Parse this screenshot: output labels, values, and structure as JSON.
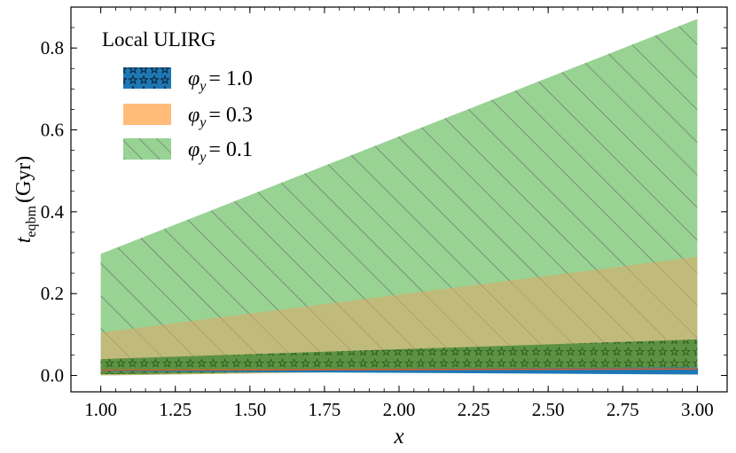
{
  "chart_data": {
    "type": "area",
    "annotation": "Local ULIRG",
    "xlabel": "x",
    "ylabel_main": "t",
    "ylabel_sub": "eqbm",
    "ylabel_unit": "(Gyr)",
    "xlim": [
      0.9,
      3.1
    ],
    "ylim": [
      -0.04,
      0.9
    ],
    "xticks": [
      "1.00",
      "1.25",
      "1.50",
      "1.75",
      "2.00",
      "2.25",
      "2.50",
      "2.75",
      "3.00"
    ],
    "yticks": [
      "0.0",
      "0.2",
      "0.4",
      "0.6",
      "0.8"
    ],
    "legend_position": "upper-left",
    "series": [
      {
        "name": "φy = 1.0",
        "legend_symbol": "φ",
        "legend_sub": "y",
        "legend_value": "= 1.0",
        "color": "#1f77b4",
        "hatch": "stars",
        "x": [
          1.0,
          3.0
        ],
        "lower": [
          0.012,
          0.004
        ],
        "upper": [
          0.012,
          0.018
        ]
      },
      {
        "name": "φy = 0.3",
        "legend_symbol": "φ",
        "legend_sub": "y",
        "legend_value": "= 0.3",
        "color": "#ffbb78",
        "hatch": "none",
        "x": [
          1.0,
          3.0
        ],
        "lower": [
          0.0,
          0.02
        ],
        "upper": [
          0.105,
          0.29
        ]
      },
      {
        "name": "φy = 0.1",
        "legend_symbol": "φ",
        "legend_sub": "y",
        "legend_value": "= 0.1",
        "color": "#98d394",
        "hatch": "diagonal",
        "x": [
          1.0,
          3.0
        ],
        "lower": [
          0.0,
          0.02
        ],
        "upper": [
          0.297,
          0.871
        ]
      }
    ],
    "overlay_bands": [
      {
        "name": "dark-green-band",
        "color": "#4b8b3b",
        "x": [
          1.0,
          3.0
        ],
        "lower": [
          0.003,
          0.02
        ],
        "upper": [
          0.04,
          0.088
        ]
      }
    ]
  }
}
